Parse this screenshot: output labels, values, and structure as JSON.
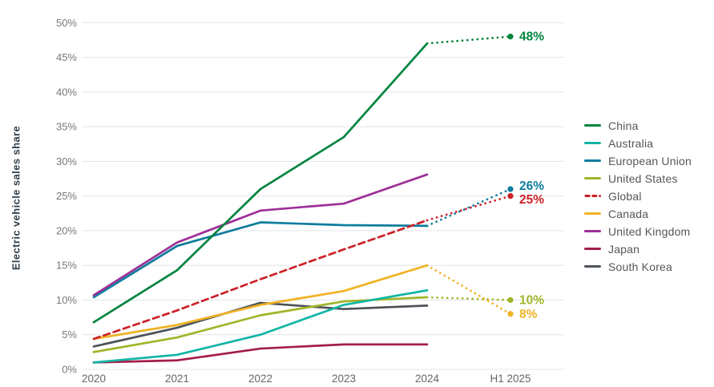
{
  "chart_data": {
    "type": "line",
    "title": "",
    "xlabel": "",
    "ylabel": "Electric vehicle sales share",
    "categories": [
      "2020",
      "2021",
      "2022",
      "2023",
      "2024",
      "H1 2025"
    ],
    "y_ticks": [
      0,
      5,
      10,
      15,
      20,
      25,
      30,
      35,
      40,
      45,
      50
    ],
    "y_tick_suffix": "%",
    "ylim": [
      0,
      50
    ],
    "grid": "horizontal",
    "legend_position": "right",
    "projection_note": "H1 2025 values shown as dotted projections with labeled end points",
    "series": [
      {
        "name": "China",
        "color": "#00843d",
        "style": "solid",
        "values": [
          6.8,
          14.3,
          26.0,
          33.5,
          47.0
        ],
        "projection": 48,
        "end_label": "48%"
      },
      {
        "name": "Australia",
        "color": "#10b5a5",
        "style": "solid",
        "values": [
          1.0,
          2.1,
          5.0,
          9.3,
          11.4
        ],
        "projection": null,
        "end_label": null
      },
      {
        "name": "European Union",
        "color": "#0e7d9e",
        "style": "solid",
        "values": [
          10.4,
          17.8,
          21.2,
          20.8,
          20.7
        ],
        "projection": 26,
        "end_label": "26%"
      },
      {
        "name": "United States",
        "color": "#9fb528",
        "style": "solid",
        "values": [
          2.5,
          4.6,
          7.8,
          9.8,
          10.4
        ],
        "projection": 10,
        "end_label": "10%"
      },
      {
        "name": "Global",
        "color": "#cc2128",
        "style": "dashed",
        "values": [
          4.4,
          8.5,
          13.0,
          17.3,
          21.5
        ],
        "projection": 25,
        "end_label": "25%"
      },
      {
        "name": "Canada",
        "color": "#f0b323",
        "style": "solid",
        "values": [
          4.4,
          6.4,
          9.3,
          11.3,
          15.0
        ],
        "projection": 8,
        "end_label": "8%"
      },
      {
        "name": "United Kingdom",
        "color": "#9e2f97",
        "style": "solid",
        "values": [
          10.7,
          18.3,
          22.9,
          23.9,
          28.1
        ],
        "projection": null,
        "end_label": null
      },
      {
        "name": "Japan",
        "color": "#a31e49",
        "style": "solid",
        "values": [
          1.0,
          1.3,
          3.0,
          3.6,
          3.6
        ],
        "projection": null,
        "end_label": null
      },
      {
        "name": "South Korea",
        "color": "#4d5358",
        "style": "solid",
        "values": [
          3.3,
          6.0,
          9.6,
          8.7,
          9.2
        ],
        "projection": null,
        "end_label": null
      }
    ]
  },
  "axis_colors": {
    "y_tick_label": "#75787b",
    "x_tick_label": "#63666a",
    "gridline": "#e3e4e6",
    "y_title": "#333f48"
  }
}
